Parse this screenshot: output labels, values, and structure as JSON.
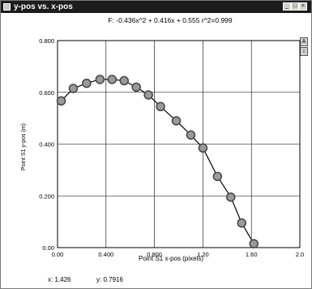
{
  "window": {
    "title": "y-pos vs. x-pos",
    "icons": [
      "window-icon",
      "minimize-icon",
      "maximize-icon",
      "close-icon"
    ]
  },
  "side_buttons": [
    "scale-icon",
    "zoom-icon"
  ],
  "readout": {
    "x_label": "X:",
    "x_value": "x: 1.426",
    "y_value": "y:  0.7916"
  },
  "chart_data": {
    "type": "scatter",
    "title": "F: -0.436x^2 + 0.416x + 0.555  r^2=0.999",
    "xlabel": "Point S1 x-pos (pixels)",
    "ylabel": "Point S1 y-pos (m)",
    "xlim": [
      0,
      2.0
    ],
    "ylim": [
      0,
      0.8
    ],
    "xticks": [
      "0.00",
      "0.400",
      "0.800",
      "1.20",
      "1.60",
      "2.0"
    ],
    "yticks": [
      "0.00",
      "0.200",
      "0.400",
      "0.600",
      "0.800"
    ],
    "grid": true,
    "point_color": "#444444",
    "fit_color": "#000000",
    "series": [
      {
        "x": [
          0.03,
          0.13,
          0.24,
          0.35,
          0.45,
          0.55,
          0.65,
          0.75,
          0.85,
          0.98,
          1.1,
          1.2,
          1.32,
          1.43,
          1.52,
          1.62
        ],
        "y": [
          0.567,
          0.615,
          0.635,
          0.65,
          0.65,
          0.645,
          0.62,
          0.59,
          0.545,
          0.49,
          0.435,
          0.385,
          0.275,
          0.195,
          0.095,
          0.015
        ]
      }
    ]
  }
}
